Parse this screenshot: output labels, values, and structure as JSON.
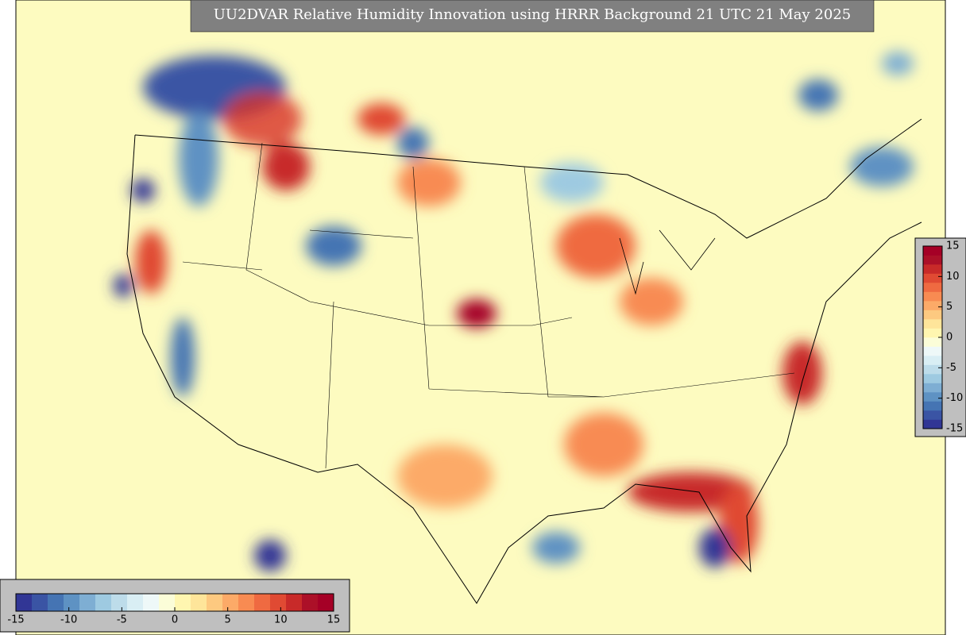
{
  "title": "UU2DVAR Relative Humidity Innovation using HRRR Background 21 UTC 21 May 2025",
  "colorbar": {
    "range": [
      -15,
      15
    ],
    "ticks": [
      -15,
      -10,
      -5,
      0,
      5,
      10,
      15
    ],
    "colors": [
      "#313695",
      "#3a54a4",
      "#4574b3",
      "#5e92c3",
      "#7eaed3",
      "#9ecae1",
      "#bddcea",
      "#d9eef4",
      "#eef8f8",
      "#fbfdd8",
      "#fff6b0",
      "#fee59a",
      "#fdc980",
      "#fcaa68",
      "#f88b52",
      "#ef6a41",
      "#e04a33",
      "#c82a29",
      "#ac1028",
      "#a50026"
    ]
  }
}
